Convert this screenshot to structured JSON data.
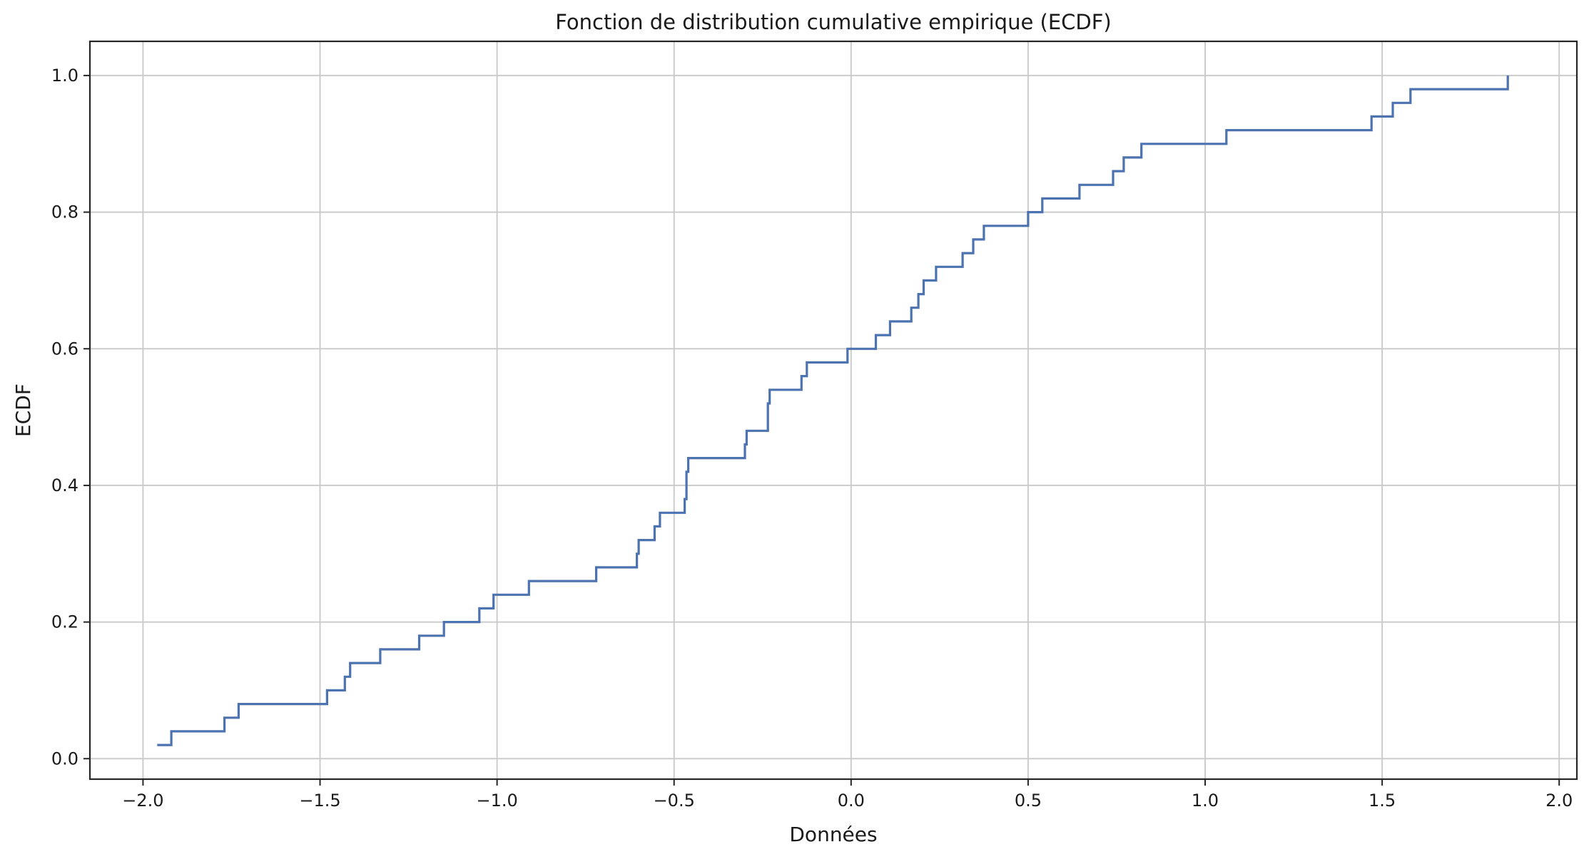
{
  "chart_data": {
    "type": "line",
    "drawstyle": "steps-post",
    "title": "Fonction de distribution cumulative empirique (ECDF)",
    "xlabel": "Données",
    "ylabel": "ECDF",
    "xlim": [
      -2.15,
      2.05
    ],
    "ylim": [
      -0.03,
      1.05
    ],
    "xticks": [
      -2.0,
      -1.5,
      -1.0,
      -0.5,
      0.0,
      0.5,
      1.0,
      1.5,
      2.0
    ],
    "xtick_labels": [
      "−2.0",
      "−1.5",
      "−1.0",
      "−0.5",
      "0.0",
      "0.5",
      "1.0",
      "1.5",
      "2.0"
    ],
    "yticks": [
      0.0,
      0.2,
      0.4,
      0.6,
      0.8,
      1.0
    ],
    "ytick_labels": [
      "0.0",
      "0.2",
      "0.4",
      "0.6",
      "0.8",
      "1.0"
    ],
    "grid": true,
    "line_color": "#4c72b0",
    "series": [
      {
        "x": [
          -1.96,
          -1.92,
          -1.77,
          -1.73,
          -1.48,
          -1.43,
          -1.415,
          -1.33,
          -1.22,
          -1.15,
          -1.05,
          -1.01,
          -0.91,
          -0.72,
          -0.605,
          -0.6,
          -0.555,
          -0.54,
          -0.47,
          -0.465,
          -0.46,
          -0.3,
          -0.295,
          -0.235,
          -0.23,
          -0.14,
          -0.125,
          -0.01,
          0.07,
          0.11,
          0.17,
          0.19,
          0.205,
          0.24,
          0.315,
          0.345,
          0.375,
          0.5,
          0.54,
          0.645,
          0.74,
          0.77,
          0.82,
          1.06,
          1.47,
          1.53,
          1.58,
          1.855
        ],
        "y": [
          0.02,
          0.04,
          0.06,
          0.08,
          0.1,
          0.12,
          0.14,
          0.16,
          0.18,
          0.2,
          0.22,
          0.24,
          0.26,
          0.28,
          0.3,
          0.32,
          0.34,
          0.36,
          0.38,
          0.42,
          0.44,
          0.46,
          0.48,
          0.52,
          0.54,
          0.56,
          0.58,
          0.6,
          0.62,
          0.64,
          0.66,
          0.68,
          0.7,
          0.72,
          0.74,
          0.76,
          0.78,
          0.8,
          0.82,
          0.84,
          0.86,
          0.88,
          0.9,
          0.92,
          0.94,
          0.96,
          0.98,
          1.0
        ]
      }
    ]
  }
}
